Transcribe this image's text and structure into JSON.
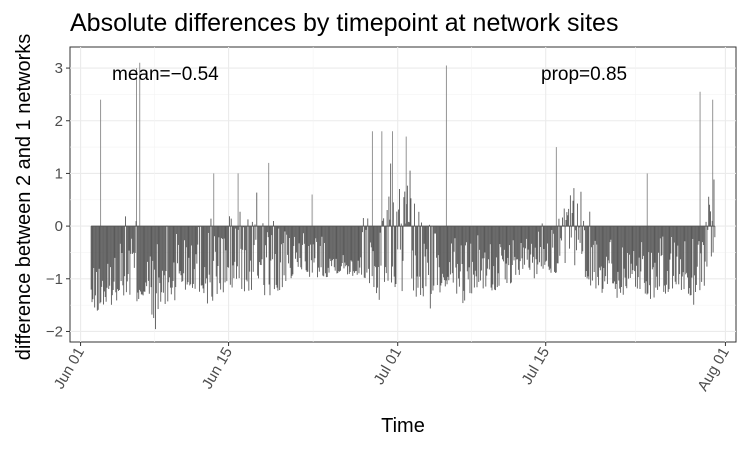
{
  "chart_data": {
    "type": "bar",
    "title": "Absolute differences by timepoint at network sites",
    "xlabel": "Time",
    "ylabel": "difference between 2 and 1 networks",
    "x_range": [
      "2024-05-31",
      "2024-08-02"
    ],
    "ylim": [
      -2.2,
      3.4
    ],
    "y_ticks": [
      -2,
      -1,
      0,
      1,
      2,
      3
    ],
    "y_tick_labels": [
      "−2",
      "−1",
      "0",
      "1",
      "2",
      "3"
    ],
    "x_ticks": [
      "2024-06-01",
      "2024-06-15",
      "2024-07-01",
      "2024-07-15",
      "2024-08-01"
    ],
    "x_tick_labels": [
      "Jun 01",
      "Jun 15",
      "Jul 01",
      "Jul 15",
      "Aug 01"
    ],
    "grid": true,
    "annotations": {
      "mean": "mean=−0.54",
      "prop": "prop=0.85"
    },
    "bar_color": "#595959",
    "data_range": [
      "2024-06-02",
      "2024-07-31"
    ],
    "envelope": [
      [
        0.0,
        -0.8,
        -1.7
      ],
      [
        1.0,
        -0.7,
        -1.6
      ],
      [
        2.0,
        -0.6,
        -1.5
      ],
      [
        3.0,
        0.1,
        -1.3
      ],
      [
        4.0,
        0.5,
        -1.6
      ],
      [
        5.0,
        -0.3,
        -1.5
      ],
      [
        6.0,
        -0.4,
        -2.0
      ],
      [
        7.0,
        0.0,
        -1.7
      ],
      [
        8.0,
        0.3,
        -1.5
      ],
      [
        9.0,
        0.4,
        -1.3
      ],
      [
        10.0,
        0.2,
        -1.2
      ],
      [
        11.0,
        0.4,
        -1.5
      ],
      [
        12.0,
        0.0,
        -1.4
      ],
      [
        13.0,
        0.3,
        -1.3
      ],
      [
        14.0,
        0.6,
        -1.4
      ],
      [
        15.0,
        0.2,
        -1.3
      ],
      [
        16.0,
        0.9,
        -1.2
      ],
      [
        17.0,
        0.2,
        -1.5
      ],
      [
        18.0,
        0.0,
        -1.2
      ],
      [
        19.0,
        -0.3,
        -1.0
      ],
      [
        20.0,
        0.1,
        -0.9
      ],
      [
        21.0,
        -0.2,
        -1.0
      ],
      [
        22.0,
        0.0,
        -1.0
      ],
      [
        23.0,
        -0.4,
        -0.9
      ],
      [
        24.0,
        -0.5,
        -0.9
      ],
      [
        25.0,
        -0.2,
        -1.0
      ],
      [
        26.0,
        0.4,
        -1.0
      ],
      [
        27.0,
        0.4,
        -1.5
      ],
      [
        28.0,
        1.4,
        -1.2
      ],
      [
        29.0,
        1.1,
        -1.3
      ],
      [
        30.0,
        1.2,
        -1.4
      ],
      [
        31.0,
        0.4,
        -1.5
      ],
      [
        32.0,
        0.2,
        -1.6
      ],
      [
        33.0,
        0.3,
        -1.4
      ],
      [
        34.0,
        -0.3,
        -1.0
      ],
      [
        35.0,
        0.0,
        -1.5
      ],
      [
        36.0,
        -0.1,
        -1.3
      ],
      [
        37.0,
        -0.1,
        -1.2
      ],
      [
        38.0,
        -0.2,
        -1.3
      ],
      [
        39.0,
        -0.4,
        -1.1
      ],
      [
        40.0,
        -0.2,
        -1.1
      ],
      [
        41.0,
        -0.2,
        -0.9
      ],
      [
        42.0,
        0.0,
        -1.0
      ],
      [
        43.0,
        0.3,
        -0.8
      ],
      [
        44.0,
        0.2,
        -1.0
      ],
      [
        45.0,
        0.5,
        -0.7
      ],
      [
        46.0,
        1.0,
        -0.8
      ],
      [
        47.0,
        0.3,
        -1.1
      ],
      [
        48.0,
        0.2,
        -1.3
      ],
      [
        49.0,
        0.0,
        -1.3
      ],
      [
        50.0,
        -0.2,
        -1.4
      ],
      [
        51.0,
        -0.1,
        -1.3
      ],
      [
        52.0,
        0.0,
        -1.3
      ],
      [
        53.0,
        -0.1,
        -1.4
      ],
      [
        54.0,
        -0.2,
        -1.5
      ],
      [
        55.0,
        -0.1,
        -1.2
      ],
      [
        56.0,
        -0.2,
        -1.3
      ],
      [
        57.0,
        0.0,
        -1.5
      ],
      [
        58.0,
        0.2,
        -1.2
      ],
      [
        59.0,
        2.0,
        -0.4
      ]
    ],
    "spikes": [
      [
        0.9,
        2.4
      ],
      [
        4.3,
        3.0
      ],
      [
        4.6,
        3.1
      ],
      [
        11.6,
        1.0
      ],
      [
        13.9,
        1.0
      ],
      [
        16.8,
        1.2
      ],
      [
        20.9,
        0.6
      ],
      [
        26.6,
        1.8
      ],
      [
        27.5,
        1.8
      ],
      [
        28.5,
        1.8
      ],
      [
        29.8,
        1.7
      ],
      [
        33.6,
        3.05
      ],
      [
        44.0,
        1.5
      ],
      [
        52.6,
        1.0
      ],
      [
        57.6,
        2.55
      ],
      [
        58.8,
        2.4
      ]
    ]
  }
}
